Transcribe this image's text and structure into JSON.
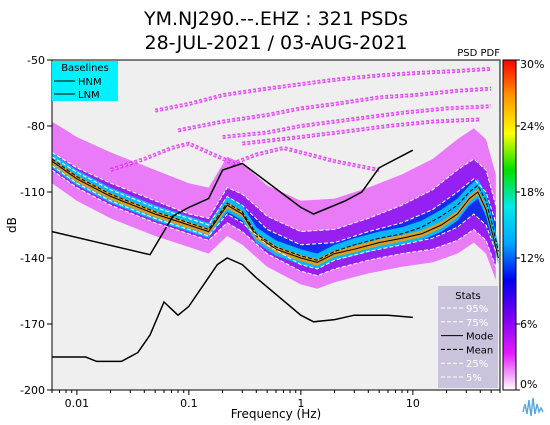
{
  "chart_data": {
    "type": "heatmap",
    "title_line1": "YM.NJ290.--.EHZ : 321 PSDs",
    "title_line2": "28-JUL-2021 / 03-AUG-2021",
    "colorbar_label": "PSD PDF",
    "xlabel": "Frequency (Hz)",
    "ylabel": "dB",
    "x_scale": "log",
    "xlim": [
      0.006,
      60
    ],
    "ylim": [
      -200,
      -50
    ],
    "x_ticks": [
      {
        "value": 0.01,
        "label": "0.01"
      },
      {
        "value": 0.1,
        "label": "0.1"
      },
      {
        "value": 1,
        "label": "1"
      },
      {
        "value": 10,
        "label": "10"
      }
    ],
    "y_ticks": [
      {
        "value": -50,
        "label": "-50"
      },
      {
        "value": -80,
        "label": "-80"
      },
      {
        "value": -110,
        "label": "-110"
      },
      {
        "value": -140,
        "label": "-140"
      },
      {
        "value": -170,
        "label": "-170"
      },
      {
        "value": -200,
        "label": "-200"
      }
    ],
    "colorbar_ticks": [
      {
        "value": 30,
        "label": "30%"
      },
      {
        "value": 24,
        "label": "24%"
      },
      {
        "value": 18,
        "label": "18%"
      },
      {
        "value": 12,
        "label": "12%"
      },
      {
        "value": 6,
        "label": "6%"
      },
      {
        "value": 0,
        "label": "0%"
      }
    ],
    "colorbar_range": [
      0,
      30
    ],
    "colorbar_colors": [
      "#ffffff",
      "#e41bff",
      "#7a00f0",
      "#0000f0",
      "#00a6ff",
      "#00eaea",
      "#00e000",
      "#ffff00",
      "#ff9900",
      "#ff0000"
    ],
    "plot_background": "#efefef",
    "baselines_legend": {
      "title": "Baselines",
      "entries": [
        "HNM",
        "LNM"
      ],
      "background": "#00f0ff"
    },
    "stats_legend": {
      "title": "Stats",
      "entries": [
        {
          "label": "95%",
          "style": "dashed",
          "color": "#ffffff"
        },
        {
          "label": "75%",
          "style": "dashed",
          "color": "#ffffff"
        },
        {
          "label": "Mode",
          "style": "solid",
          "color": "#000000"
        },
        {
          "label": "Mean",
          "style": "dashed",
          "color": "#000000"
        },
        {
          "label": "25%",
          "style": "dashed",
          "color": "#ffffff"
        },
        {
          "label": "5%",
          "style": "dashed",
          "color": "#ffffff"
        }
      ],
      "background": "#c9c3dc"
    },
    "series": [
      {
        "name": "HNM",
        "color": "#000000",
        "style": "solid",
        "points": [
          [
            0.006,
            -128
          ],
          [
            0.045,
            -138.5
          ],
          [
            0.072,
            -121
          ],
          [
            0.1,
            -117
          ],
          [
            0.15,
            -113
          ],
          [
            0.2,
            -100
          ],
          [
            0.3,
            -97
          ],
          [
            1.0,
            -117
          ],
          [
            1.3,
            -120
          ],
          [
            2.5,
            -114
          ],
          [
            3.5,
            -110
          ],
          [
            5.0,
            -99
          ],
          [
            10.0,
            -91
          ]
        ]
      },
      {
        "name": "LNM",
        "color": "#000000",
        "style": "solid",
        "points": [
          [
            0.006,
            -185
          ],
          [
            0.012,
            -185
          ],
          [
            0.015,
            -187
          ],
          [
            0.025,
            -187
          ],
          [
            0.035,
            -183
          ],
          [
            0.045,
            -175
          ],
          [
            0.06,
            -160
          ],
          [
            0.08,
            -166
          ],
          [
            0.1,
            -162
          ],
          [
            0.18,
            -143
          ],
          [
            0.22,
            -140
          ],
          [
            0.3,
            -143
          ],
          [
            0.4,
            -149
          ],
          [
            1.0,
            -166
          ],
          [
            1.3,
            -169
          ],
          [
            2.0,
            -168
          ],
          [
            3.0,
            -166
          ],
          [
            6.0,
            -166
          ],
          [
            10.0,
            -167
          ]
        ]
      },
      {
        "name": "Mode",
        "color": "#000000",
        "style": "solid",
        "points": [
          [
            0.006,
            -96
          ],
          [
            0.01,
            -104
          ],
          [
            0.02,
            -112
          ],
          [
            0.05,
            -120
          ],
          [
            0.1,
            -125
          ],
          [
            0.15,
            -128
          ],
          [
            0.22,
            -116
          ],
          [
            0.3,
            -120
          ],
          [
            0.4,
            -130
          ],
          [
            0.6,
            -136
          ],
          [
            1.0,
            -140
          ],
          [
            1.4,
            -142
          ],
          [
            2.0,
            -138
          ],
          [
            3.0,
            -136
          ],
          [
            5.0,
            -133
          ],
          [
            8.0,
            -131
          ],
          [
            12.0,
            -129
          ],
          [
            18.0,
            -125
          ],
          [
            25.0,
            -120
          ],
          [
            32.0,
            -113
          ],
          [
            38.0,
            -110
          ],
          [
            45.0,
            -118
          ],
          [
            52.0,
            -130
          ],
          [
            58.0,
            -140
          ]
        ]
      },
      {
        "name": "Mean",
        "color": "#000000",
        "style": "dashed",
        "points": [
          [
            0.006,
            -95
          ],
          [
            0.01,
            -103
          ],
          [
            0.02,
            -111
          ],
          [
            0.05,
            -119
          ],
          [
            0.1,
            -124
          ],
          [
            0.15,
            -127
          ],
          [
            0.22,
            -115
          ],
          [
            0.3,
            -119
          ],
          [
            0.4,
            -129
          ],
          [
            0.6,
            -135
          ],
          [
            1.0,
            -139
          ],
          [
            1.4,
            -141
          ],
          [
            2.0,
            -137
          ],
          [
            3.0,
            -134
          ],
          [
            5.0,
            -131
          ],
          [
            8.0,
            -129
          ],
          [
            12.0,
            -126
          ],
          [
            18.0,
            -121
          ],
          [
            25.0,
            -116
          ],
          [
            32.0,
            -110
          ],
          [
            38.0,
            -107
          ],
          [
            45.0,
            -114
          ],
          [
            52.0,
            -126
          ],
          [
            58.0,
            -137
          ]
        ]
      },
      {
        "name": "95%",
        "color": "#ffffff",
        "style": "dashed",
        "points": [
          [
            0.006,
            -92
          ],
          [
            0.01,
            -99
          ],
          [
            0.02,
            -106
          ],
          [
            0.05,
            -114
          ],
          [
            0.1,
            -120
          ],
          [
            0.15,
            -122
          ],
          [
            0.22,
            -108
          ],
          [
            0.3,
            -111
          ],
          [
            0.5,
            -121
          ],
          [
            1.0,
            -128
          ],
          [
            2.0,
            -127
          ],
          [
            4.0,
            -122
          ],
          [
            8.0,
            -116
          ],
          [
            15.0,
            -109
          ],
          [
            25.0,
            -100
          ],
          [
            35.0,
            -95
          ],
          [
            45.0,
            -100
          ],
          [
            55.0,
            -116
          ]
        ]
      },
      {
        "name": "75%",
        "color": "#ffffff",
        "style": "dashed",
        "points": [
          [
            0.006,
            -94
          ],
          [
            0.01,
            -101
          ],
          [
            0.02,
            -109
          ],
          [
            0.05,
            -117
          ],
          [
            0.1,
            -122
          ],
          [
            0.15,
            -125
          ],
          [
            0.22,
            -112
          ],
          [
            0.3,
            -116
          ],
          [
            0.5,
            -127
          ],
          [
            1.0,
            -134
          ],
          [
            2.0,
            -133
          ],
          [
            4.0,
            -128
          ],
          [
            8.0,
            -124
          ],
          [
            15.0,
            -118
          ],
          [
            25.0,
            -110
          ],
          [
            35.0,
            -104
          ],
          [
            45.0,
            -110
          ],
          [
            55.0,
            -124
          ]
        ]
      },
      {
        "name": "25%",
        "color": "#ffffff",
        "style": "dashed",
        "points": [
          [
            0.006,
            -98
          ],
          [
            0.01,
            -106
          ],
          [
            0.02,
            -114
          ],
          [
            0.05,
            -122
          ],
          [
            0.1,
            -127
          ],
          [
            0.15,
            -130
          ],
          [
            0.22,
            -120
          ],
          [
            0.3,
            -124
          ],
          [
            0.5,
            -134
          ],
          [
            1.0,
            -143
          ],
          [
            1.4,
            -145
          ],
          [
            2.0,
            -141
          ],
          [
            4.0,
            -137
          ],
          [
            8.0,
            -134
          ],
          [
            15.0,
            -131
          ],
          [
            25.0,
            -126
          ],
          [
            35.0,
            -120
          ],
          [
            45.0,
            -125
          ],
          [
            55.0,
            -137
          ]
        ]
      },
      {
        "name": "5%",
        "color": "#ffffff",
        "style": "dashed",
        "points": [
          [
            0.006,
            -100
          ],
          [
            0.01,
            -108
          ],
          [
            0.02,
            -116
          ],
          [
            0.05,
            -124
          ],
          [
            0.1,
            -129
          ],
          [
            0.15,
            -132
          ],
          [
            0.22,
            -124
          ],
          [
            0.3,
            -128
          ],
          [
            0.5,
            -138
          ],
          [
            1.0,
            -146
          ],
          [
            1.4,
            -148
          ],
          [
            2.0,
            -145
          ],
          [
            4.0,
            -141
          ],
          [
            8.0,
            -138
          ],
          [
            15.0,
            -136
          ],
          [
            25.0,
            -132
          ],
          [
            35.0,
            -127
          ],
          [
            45.0,
            -132
          ],
          [
            55.0,
            -144
          ]
        ]
      }
    ],
    "high_noise_traces": [
      [
        [
          0.05,
          -73
        ],
        [
          0.1,
          -70
        ],
        [
          0.2,
          -66
        ],
        [
          0.5,
          -63
        ],
        [
          1.0,
          -61
        ],
        [
          2.0,
          -59
        ],
        [
          5.0,
          -57
        ],
        [
          10.0,
          -56
        ],
        [
          25.0,
          -55
        ],
        [
          50.0,
          -54
        ]
      ],
      [
        [
          0.08,
          -82
        ],
        [
          0.2,
          -78
        ],
        [
          0.5,
          -75
        ],
        [
          1.0,
          -72
        ],
        [
          2.0,
          -70
        ],
        [
          5.0,
          -67
        ],
        [
          10.0,
          -66
        ],
        [
          25.0,
          -64
        ],
        [
          50.0,
          -63
        ]
      ],
      [
        [
          0.2,
          -85
        ],
        [
          0.5,
          -83
        ],
        [
          1.0,
          -80
        ],
        [
          2.0,
          -78
        ],
        [
          4.0,
          -76
        ],
        [
          8.0,
          -74
        ],
        [
          20.0,
          -72
        ],
        [
          50.0,
          -71
        ]
      ],
      [
        [
          0.3,
          -88
        ],
        [
          1.0,
          -85
        ],
        [
          3.0,
          -82
        ],
        [
          6.0,
          -80
        ],
        [
          15.0,
          -78
        ],
        [
          40.0,
          -77
        ]
      ],
      [
        [
          0.02,
          -100
        ],
        [
          0.04,
          -95
        ],
        [
          0.07,
          -90
        ],
        [
          0.1,
          -88
        ],
        [
          0.15,
          -92
        ],
        [
          0.25,
          -97
        ],
        [
          0.4,
          -93
        ],
        [
          0.7,
          -90
        ],
        [
          1.0,
          -92
        ],
        [
          2.0,
          -96
        ],
        [
          5.0,
          -100
        ]
      ]
    ]
  }
}
